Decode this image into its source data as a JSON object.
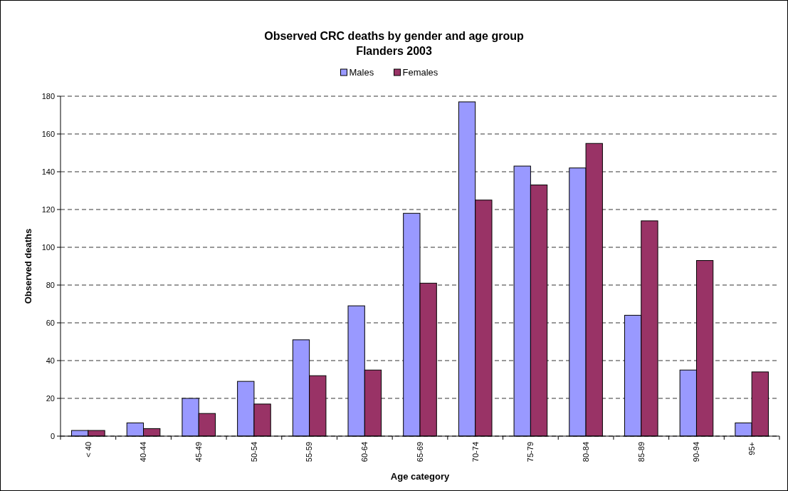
{
  "chart_data": {
    "type": "bar",
    "title": "Observed CRC deaths by gender and age group",
    "subtitle": "Flanders 2003",
    "xlabel": "Age category",
    "ylabel": "Observed deaths",
    "categories": [
      "< 40",
      "40-44",
      "45-49",
      "50-54",
      "55-59",
      "60-64",
      "65-69",
      "70-74",
      "75-79",
      "80-84",
      "85-89",
      "90-94",
      "95+"
    ],
    "series": [
      {
        "name": "Males",
        "color": "#9999ff",
        "values": [
          3,
          7,
          20,
          29,
          51,
          69,
          118,
          177,
          143,
          142,
          64,
          35,
          7
        ]
      },
      {
        "name": "Females",
        "color": "#993366",
        "values": [
          3,
          4,
          12,
          17,
          32,
          35,
          81,
          125,
          133,
          155,
          114,
          93,
          34
        ]
      }
    ],
    "ylim": [
      0,
      180
    ],
    "yticks": [
      0,
      20,
      40,
      60,
      80,
      100,
      120,
      140,
      160,
      180
    ],
    "grid": "y",
    "legend": "top"
  }
}
